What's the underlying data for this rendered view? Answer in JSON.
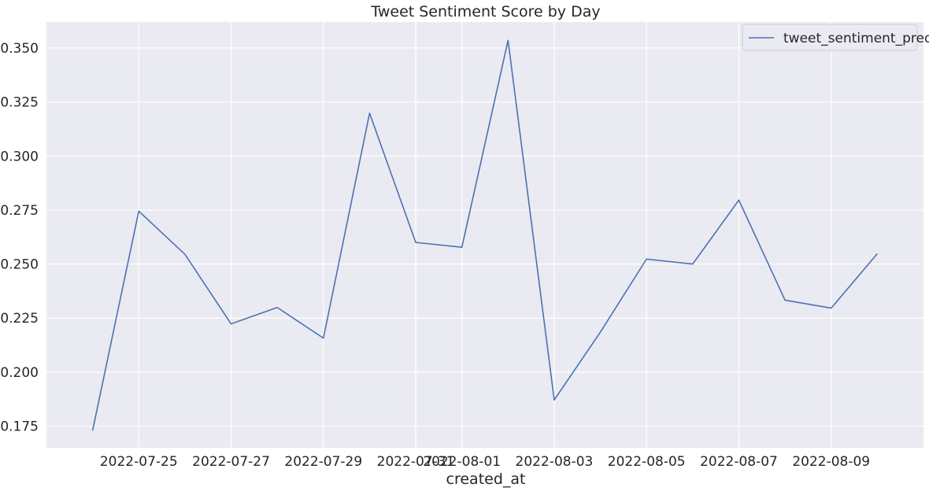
{
  "chart_data": {
    "type": "line",
    "title": "Tweet Sentiment Score by Day",
    "xlabel": "created_at",
    "ylabel": "",
    "grid": true,
    "legend_position": "top-right",
    "x_ticks": [
      "2022-07-25",
      "2022-07-27",
      "2022-07-29",
      "2022-07-31",
      "2022-08-01",
      "2022-08-03",
      "2022-08-05",
      "2022-08-07",
      "2022-08-09"
    ],
    "y_ticks": [
      "0.175",
      "0.200",
      "0.225",
      "0.250",
      "0.275",
      "0.300",
      "0.325",
      "0.350"
    ],
    "ylim": [
      0.165,
      0.362
    ],
    "xlim": [
      "2022-07-23",
      "2022-08-11"
    ],
    "x": [
      "2022-07-24",
      "2022-07-25",
      "2022-07-26",
      "2022-07-27",
      "2022-07-28",
      "2022-07-29",
      "2022-07-30",
      "2022-07-31",
      "2022-08-01",
      "2022-08-02",
      "2022-08-03",
      "2022-08-04",
      "2022-08-05",
      "2022-08-06",
      "2022-08-07",
      "2022-08-08",
      "2022-08-09",
      "2022-08-10"
    ],
    "series": [
      {
        "name": "tweet_sentiment_pred",
        "color": "#4c72b0",
        "values": [
          0.173,
          0.2745,
          0.2545,
          0.2223,
          0.2299,
          0.2157,
          0.3198,
          0.26,
          0.2578,
          0.3535,
          0.1871,
          0.2185,
          0.2523,
          0.25,
          0.2796,
          0.2333,
          0.2296,
          0.2548
        ]
      }
    ]
  }
}
